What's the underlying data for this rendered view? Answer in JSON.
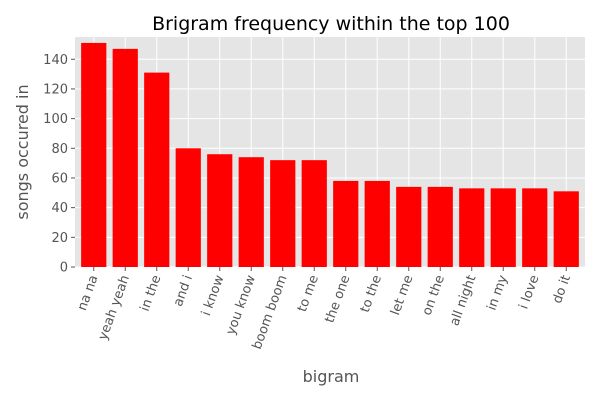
{
  "chart_data": {
    "type": "bar",
    "title": "Brigram frequency within the top 100",
    "xlabel": "bigram",
    "ylabel": "songs occured in",
    "categories": [
      "na na",
      "yeah yeah",
      "in the",
      "and i",
      "i know",
      "you know",
      "boom boom",
      "to me",
      "the one",
      "to the",
      "let me",
      "on the",
      "all night",
      "in my",
      "i love",
      "do it"
    ],
    "values": [
      151,
      147,
      131,
      80,
      76,
      74,
      72,
      72,
      58,
      58,
      54,
      54,
      53,
      53,
      53,
      51
    ],
    "ylim": [
      0,
      155
    ],
    "yticks": [
      0,
      20,
      40,
      60,
      80,
      100,
      120,
      140
    ],
    "grid": true,
    "legend": false,
    "colors": {
      "bar": "#ff0000",
      "plot_background": "#e5e5e5",
      "grid": "#ffffff"
    }
  }
}
